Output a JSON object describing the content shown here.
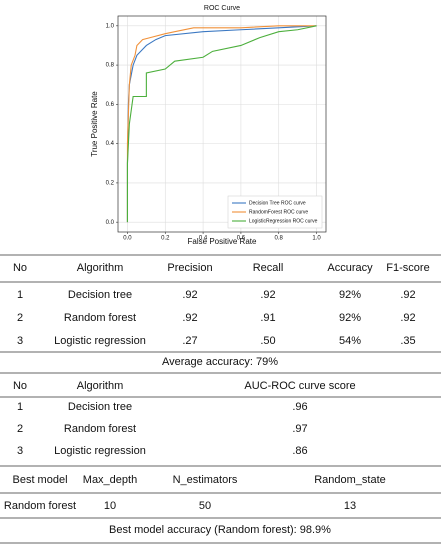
{
  "chart_data": {
    "type": "line",
    "title": "ROC Curve",
    "x_label": "False Positive Rate",
    "y_label": "True Positive Rate",
    "xlim": [
      -0.05,
      1.05
    ],
    "ylim": [
      -0.05,
      1.05
    ],
    "xticks": [
      {
        "value": 0,
        "label": "0.0"
      },
      {
        "value": 0.2,
        "label": "0.2"
      },
      {
        "value": 0.4,
        "label": "0.4"
      },
      {
        "value": 0.6,
        "label": "0.6"
      },
      {
        "value": 0.8,
        "label": "0.8"
      },
      {
        "value": 1,
        "label": "1.0"
      }
    ],
    "yticks": [
      {
        "value": 0,
        "label": "0.0"
      },
      {
        "value": 0.2,
        "label": "0.2"
      },
      {
        "value": 0.4,
        "label": "0.4"
      },
      {
        "value": 0.6,
        "label": "0.6"
      },
      {
        "value": 0.8,
        "label": "0.8"
      },
      {
        "value": 1,
        "label": "1.0"
      }
    ],
    "grid": true,
    "legend": "lower right",
    "series": [
      {
        "name": "Decision Tree ROC curve",
        "color": "#3b78c2",
        "x": [
          0,
          0,
          0.005,
          0.01,
          0.02,
          0.03,
          0.05,
          0.08,
          0.1,
          0.15,
          0.2,
          0.4,
          0.6,
          0.8,
          1
        ],
        "values": [
          0,
          0.3,
          0.6,
          0.7,
          0.75,
          0.8,
          0.85,
          0.88,
          0.9,
          0.93,
          0.95,
          0.97,
          0.98,
          0.99,
          1
        ]
      },
      {
        "name": "RandomForest ROC curve",
        "color": "#f0913a",
        "x": [
          0,
          0,
          0.01,
          0.02,
          0.04,
          0.05,
          0.08,
          0.12,
          0.2,
          0.25,
          0.35,
          0.6,
          0.8,
          1
        ],
        "values": [
          0,
          0.4,
          0.7,
          0.8,
          0.85,
          0.9,
          0.93,
          0.94,
          0.96,
          0.97,
          0.99,
          0.99,
          1,
          1
        ]
      },
      {
        "name": "LogisticRegression ROC curve",
        "color": "#4caf3c",
        "x": [
          0,
          0,
          0.01,
          0.03,
          0.1,
          0.1,
          0.2,
          0.25,
          0.4,
          0.45,
          0.6,
          0.7,
          0.8,
          0.9,
          1
        ],
        "values": [
          0,
          0.3,
          0.5,
          0.64,
          0.64,
          0.76,
          0.78,
          0.82,
          0.84,
          0.87,
          0.9,
          0.94,
          0.97,
          0.98,
          1
        ]
      }
    ]
  },
  "tables": [
    {
      "header": [
        "No",
        "Algorithm",
        "Precision",
        "Recall",
        "Accuracy",
        "F1-score"
      ],
      "rows": [
        [
          "1",
          "Decision tree",
          ".92",
          ".92",
          "92%",
          ".92"
        ],
        [
          "2",
          "Random forest",
          ".92",
          ".91",
          "92%",
          ".92"
        ],
        [
          "3",
          "Logistic regression",
          ".27",
          ".50",
          "54%",
          ".35"
        ]
      ],
      "footer": "Average accuracy: 79%"
    },
    {
      "header": [
        "No",
        "Algorithm",
        "AUC-ROC curve score"
      ],
      "rows": [
        [
          "1",
          "Decision tree",
          ".96"
        ],
        [
          "2",
          "Random forest",
          ".97"
        ],
        [
          "3",
          "Logistic regression",
          ".86"
        ]
      ]
    },
    {
      "header": [
        "Best model",
        "Max_depth",
        "N_estimators",
        "Random_state"
      ],
      "rows": [
        [
          "Random forest",
          "10",
          "50",
          "13"
        ]
      ],
      "footer": "Best model accuracy (Random forest): 98.9%"
    }
  ]
}
